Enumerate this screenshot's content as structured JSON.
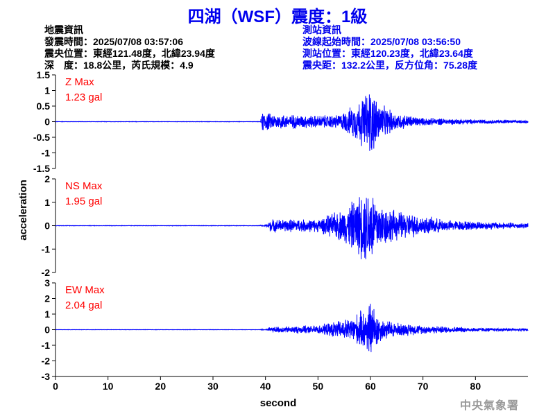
{
  "title": "四湖（WSF）震度：1級",
  "earthquake_info": {
    "heading": "地震資訊",
    "origin_time": "發震時間：2025/07/08 03:57:06",
    "epicenter": "震央位置：東經121.48度，北緯23.94度",
    "depth_magnitude": "深　度：18.8公里，芮氏規模：4.9"
  },
  "station_info": {
    "heading": "測站資訊",
    "wave_start": "波線起始時間：2025/07/08 03:56:50",
    "location": "測站位置：東經120.23度，北緯23.64度",
    "distance": "震央距：132.2公里，反方位角：75.28度"
  },
  "watermark": "中央氣象署",
  "chart_data": {
    "type": "line",
    "xlabel": "second",
    "ylabel": "acceleration",
    "xlim": [
      0,
      90
    ],
    "x_ticks": [
      "0",
      "10",
      "20",
      "30",
      "40",
      "50",
      "60",
      "70",
      "80"
    ],
    "line_color": "#0000ff",
    "label_color": "#ff0000",
    "panels": [
      {
        "name": "Z",
        "max_label": "Z Max",
        "max_value": "1.23 gal",
        "ylim": [
          -1.5,
          1.5
        ],
        "y_ticks": [
          "1.5",
          "1",
          "0.5",
          "0",
          "-0.5",
          "-1",
          "-1.5"
        ],
        "envelope": [
          [
            0,
            0.02
          ],
          [
            39,
            0.02
          ],
          [
            39.5,
            0.4
          ],
          [
            41,
            0.28
          ],
          [
            50,
            0.22
          ],
          [
            54,
            0.25
          ],
          [
            57,
            0.6
          ],
          [
            59,
            1.0
          ],
          [
            60,
            1.23
          ],
          [
            62,
            0.6
          ],
          [
            65,
            0.3
          ],
          [
            70,
            0.14
          ],
          [
            80,
            0.08
          ],
          [
            90,
            0.05
          ]
        ]
      },
      {
        "name": "NS",
        "max_label": "NS Max",
        "max_value": "1.95 gal",
        "ylim": [
          -2,
          2
        ],
        "y_ticks": [
          "2",
          "1",
          "0",
          "-1",
          "-2"
        ],
        "envelope": [
          [
            0,
            0.03
          ],
          [
            40,
            0.03
          ],
          [
            41,
            0.3
          ],
          [
            50,
            0.3
          ],
          [
            55,
            0.8
          ],
          [
            58,
            1.5
          ],
          [
            60,
            1.95
          ],
          [
            62,
            1.0
          ],
          [
            65,
            0.7
          ],
          [
            70,
            0.45
          ],
          [
            75,
            0.25
          ],
          [
            90,
            0.12
          ]
        ]
      },
      {
        "name": "EW",
        "max_label": "EW Max",
        "max_value": "2.04 gal",
        "ylim": [
          -3,
          3
        ],
        "y_ticks": [
          "3",
          "2",
          "1",
          "0",
          "-1",
          "-2",
          "-3"
        ],
        "envelope": [
          [
            0,
            0.03
          ],
          [
            40,
            0.03
          ],
          [
            41,
            0.2
          ],
          [
            50,
            0.3
          ],
          [
            56,
            0.8
          ],
          [
            59,
            1.5
          ],
          [
            60,
            2.04
          ],
          [
            62,
            0.8
          ],
          [
            65,
            0.5
          ],
          [
            70,
            0.3
          ],
          [
            80,
            0.15
          ],
          [
            90,
            0.1
          ]
        ]
      }
    ]
  }
}
